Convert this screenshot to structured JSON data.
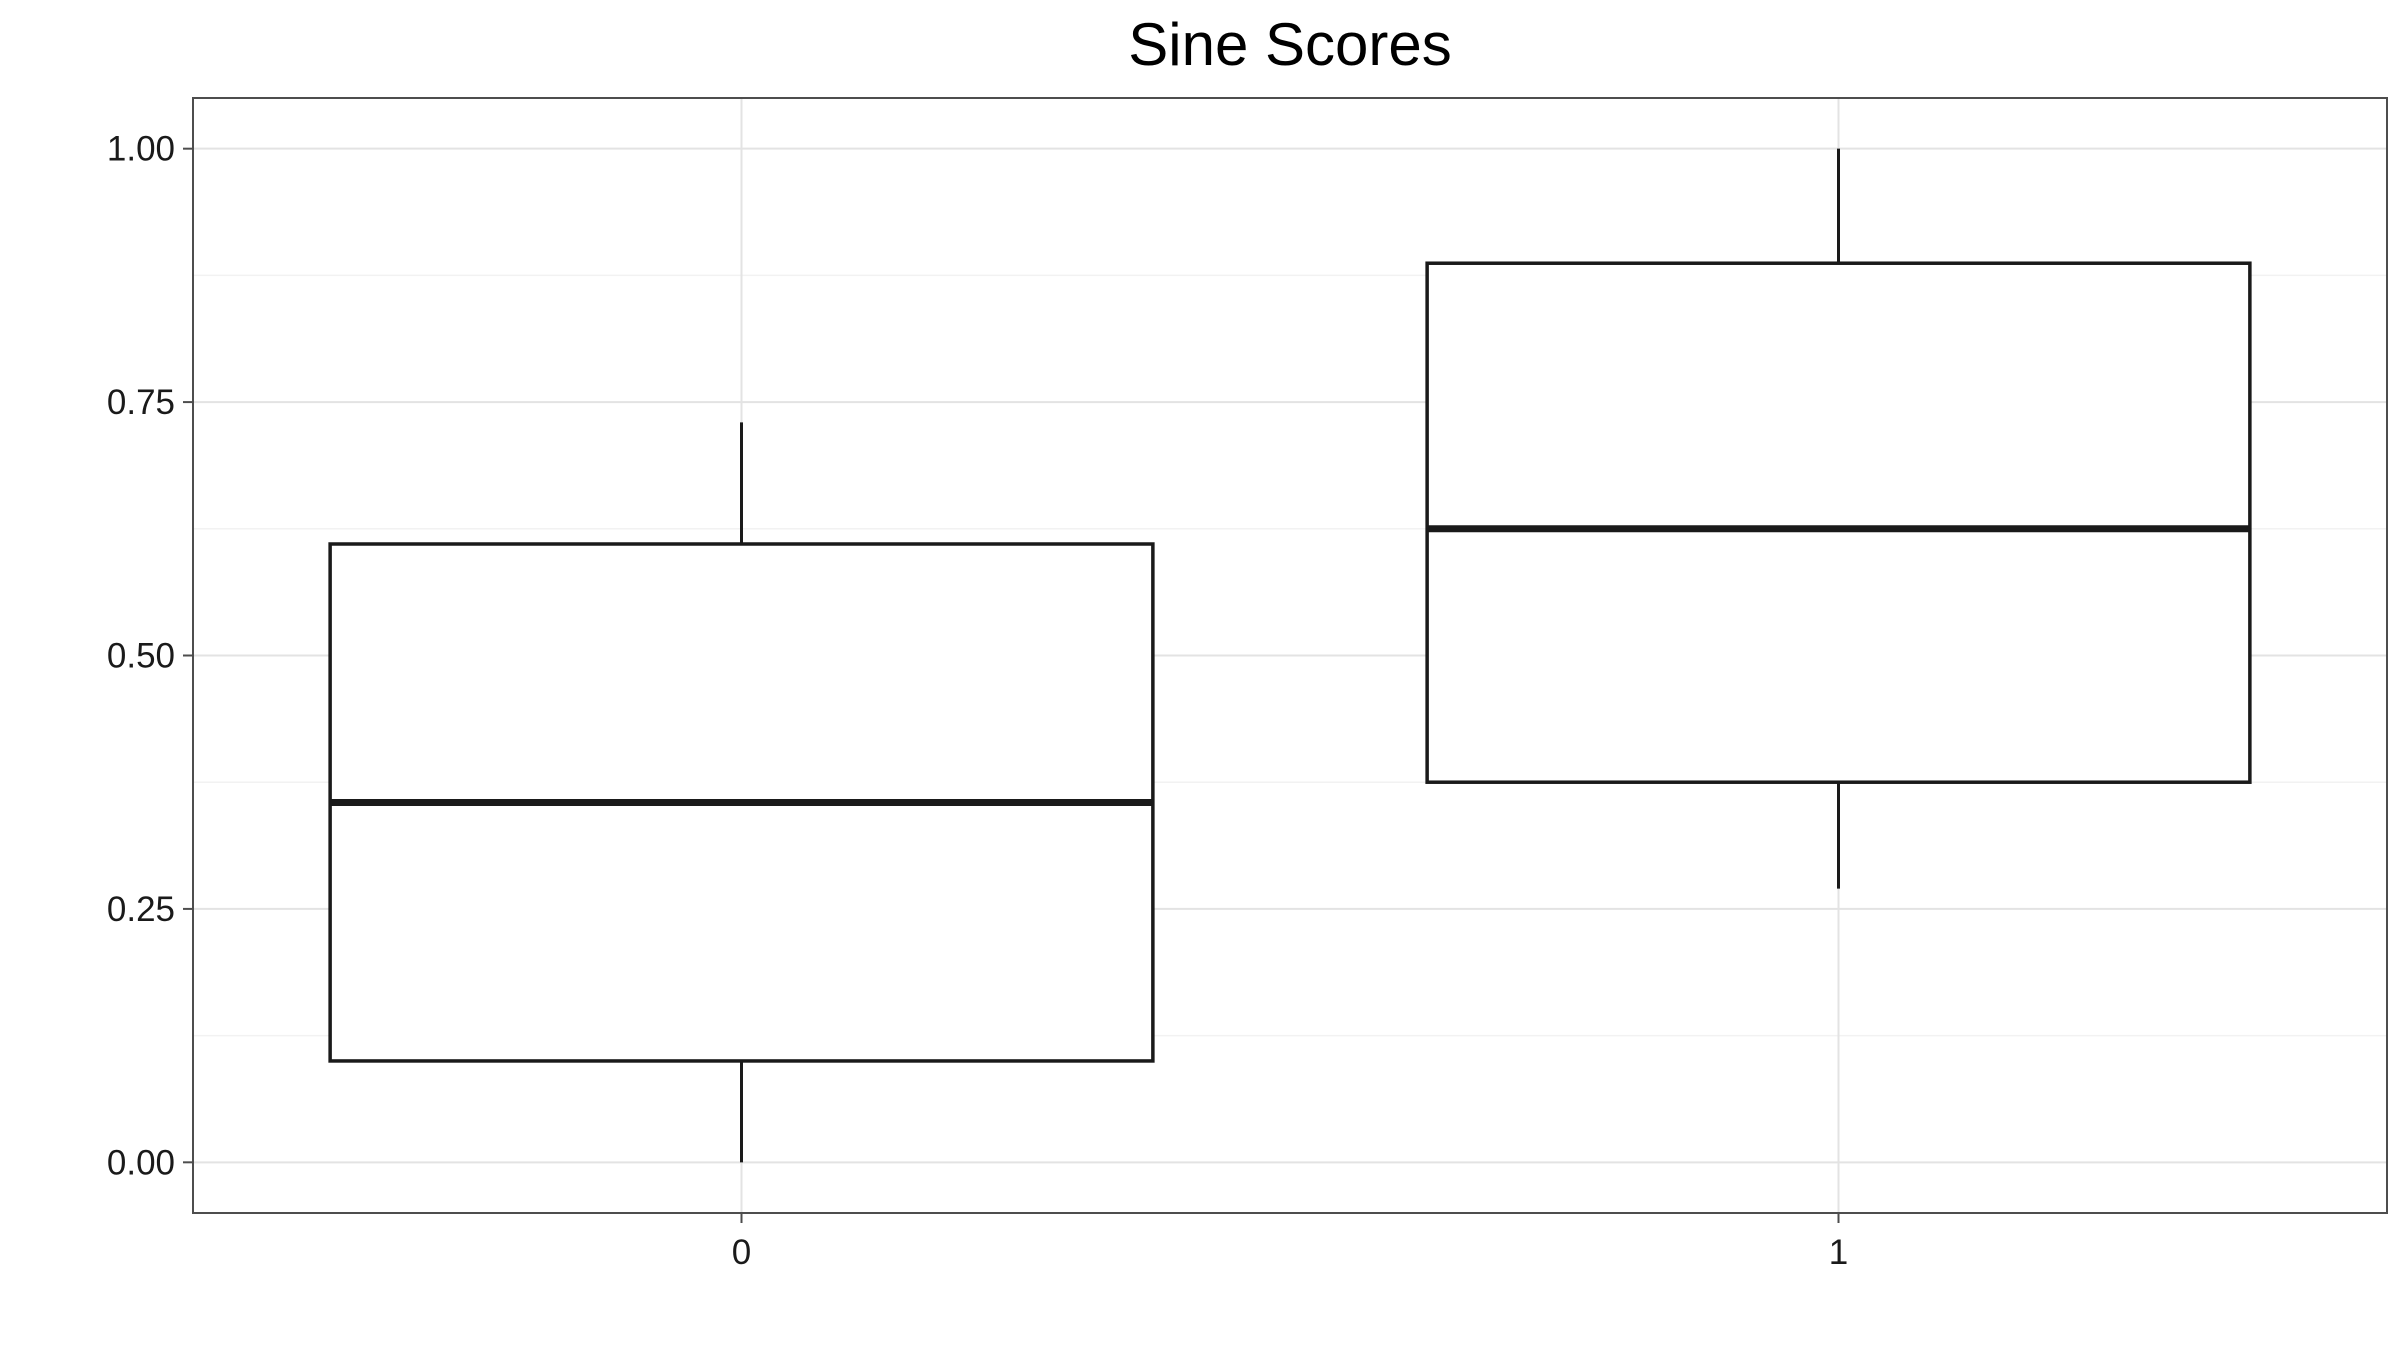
{
  "chart_data": {
    "type": "boxplot",
    "title": "Sine Scores",
    "xlabel": "",
    "ylabel": "",
    "categories": [
      "0",
      "1"
    ],
    "boxes": [
      {
        "category": "0",
        "whisker_low": 0.0,
        "q1": 0.1,
        "median": 0.355,
        "q3": 0.61,
        "whisker_high": 0.73
      },
      {
        "category": "1",
        "whisker_low": 0.27,
        "q1": 0.375,
        "median": 0.625,
        "q3": 0.887,
        "whisker_high": 1.0
      }
    ],
    "ylim": [
      -0.05,
      1.05
    ],
    "yticks": [
      {
        "value": 0.0,
        "label": "0.00"
      },
      {
        "value": 0.25,
        "label": "0.25"
      },
      {
        "value": 0.5,
        "label": "0.50"
      },
      {
        "value": 0.75,
        "label": "0.75"
      },
      {
        "value": 1.0,
        "label": "1.00"
      }
    ],
    "grid": true,
    "legend": "none",
    "colors": {
      "box_fill": "#ffffff",
      "box_stroke": "#1a1a1a",
      "grid_major": "#e3e3e3",
      "grid_minor": "#f2f2f2",
      "panel_border": "#4d4d4d"
    }
  }
}
